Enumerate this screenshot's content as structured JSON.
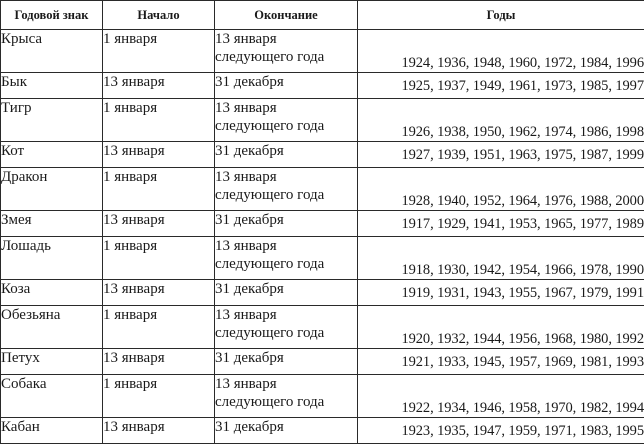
{
  "headers": {
    "sign": "Годовой знак",
    "start": "Начало",
    "end": "Окончание",
    "years": "Годы"
  },
  "rows": [
    {
      "sign": "Крыса",
      "start": "1 января",
      "end_line1": "13 января",
      "end_line2": "следующего года",
      "years": "1924, 1936, 1948, 1960, 1972, 1984, 1996"
    },
    {
      "sign": "Бык",
      "start": "13 января",
      "end_line1": "31 декабря",
      "end_line2": "",
      "years": "1925, 1937, 1949, 1961, 1973, 1985, 1997"
    },
    {
      "sign": "Тигр",
      "start": "1 января",
      "end_line1": "13 января",
      "end_line2": "следующего года",
      "years": "1926, 1938, 1950, 1962, 1974, 1986, 1998"
    },
    {
      "sign": "Кот",
      "start": "13 января",
      "end_line1": "31 декабря",
      "end_line2": "",
      "years": "1927, 1939, 1951, 1963, 1975, 1987, 1999"
    },
    {
      "sign": "Дракон",
      "start": "1 января",
      "end_line1": "13 января",
      "end_line2": "следующего года",
      "years": "1928, 1940, 1952, 1964, 1976, 1988, 2000"
    },
    {
      "sign": "Змея",
      "start": "13 января",
      "end_line1": "31 декабря",
      "end_line2": "",
      "years": "1917, 1929, 1941, 1953, 1965, 1977, 1989"
    },
    {
      "sign": "Лошадь",
      "start": "1 января",
      "end_line1": "13 января",
      "end_line2": "следующего года",
      "years": "1918, 1930, 1942, 1954, 1966, 1978, 1990"
    },
    {
      "sign": "Коза",
      "start": "13 января",
      "end_line1": "31 декабря",
      "end_line2": "",
      "years": "1919, 1931, 1943, 1955, 1967, 1979, 1991"
    },
    {
      "sign": "Обезьяна",
      "start": "1 января",
      "end_line1": "13 января",
      "end_line2": "следующего года",
      "years": "1920, 1932, 1944, 1956, 1968, 1980, 1992"
    },
    {
      "sign": "Петух",
      "start": "13 января",
      "end_line1": "31 декабря",
      "end_line2": "",
      "years": "1921, 1933, 1945, 1957, 1969, 1981, 1993"
    },
    {
      "sign": "Собака",
      "start": "1 января",
      "end_line1": "13 января",
      "end_line2": "следующего года",
      "years": "1922, 1934, 1946, 1958, 1970, 1982, 1994"
    },
    {
      "sign": "Кабан",
      "start": "13 января",
      "end_line1": "31 декабря",
      "end_line2": "",
      "years": "1923, 1935, 1947, 1959, 1971, 1983, 1995"
    }
  ]
}
